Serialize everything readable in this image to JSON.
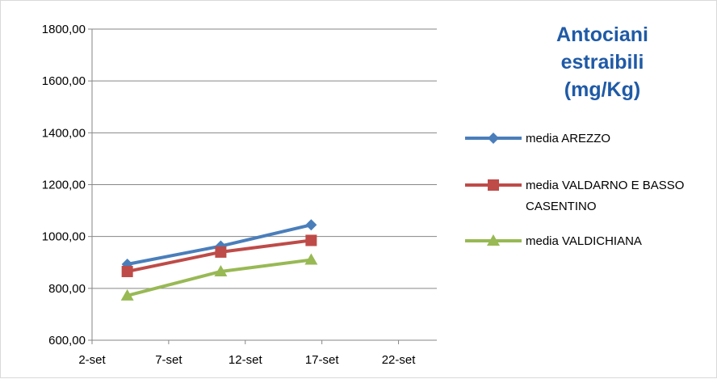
{
  "chart_data": {
    "type": "line",
    "title": [
      "Antociani",
      "estraibili",
      "(mg/Kg)"
    ],
    "xlabel": "",
    "ylabel": "",
    "x_ticks": [
      "2-set",
      "7-set",
      "12-set",
      "17-set",
      "22-set"
    ],
    "x_tick_days": [
      2,
      7,
      12,
      17,
      22
    ],
    "xlim": [
      2,
      24.5
    ],
    "ylim": [
      600,
      1800
    ],
    "y_ticks": [
      "600,00",
      "800,00",
      "1000,00",
      "1200,00",
      "1400,00",
      "1600,00",
      "1800,00"
    ],
    "y_tick_values": [
      600,
      800,
      1000,
      1200,
      1400,
      1600,
      1800
    ],
    "grid": "horizontal",
    "legend_position": "right",
    "x": [
      "4-set",
      "10-set",
      "16-set"
    ],
    "x_days": [
      4.3,
      10.4,
      16.3
    ],
    "series": [
      {
        "name": [
          "media AREZZO"
        ],
        "values": [
          893,
          963,
          1045
        ],
        "color": "#4a7ebb",
        "marker": "diamond"
      },
      {
        "name": [
          "media VALDARNO E BASSO",
          "CASENTINO"
        ],
        "values": [
          865,
          940,
          985
        ],
        "color": "#be4b48",
        "marker": "square"
      },
      {
        "name": [
          "media VALDICHIANA"
        ],
        "values": [
          772,
          865,
          910
        ],
        "color": "#98b954",
        "marker": "triangle"
      }
    ]
  }
}
